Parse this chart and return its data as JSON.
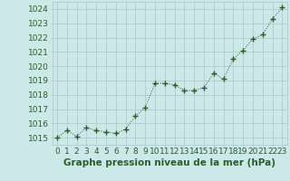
{
  "x": [
    0,
    1,
    2,
    3,
    4,
    5,
    6,
    7,
    8,
    9,
    10,
    11,
    12,
    13,
    14,
    15,
    16,
    17,
    18,
    19,
    20,
    21,
    22,
    23
  ],
  "y": [
    1015.0,
    1015.5,
    1015.1,
    1015.7,
    1015.5,
    1015.4,
    1015.3,
    1015.6,
    1016.5,
    1017.1,
    1018.8,
    1018.8,
    1018.7,
    1018.3,
    1018.3,
    1018.5,
    1019.5,
    1019.1,
    1020.5,
    1021.1,
    1021.9,
    1022.2,
    1023.3,
    1024.1
  ],
  "line_color": "#2a5f2a",
  "marker_color": "#2a5f2a",
  "bg_color": "#cce8e8",
  "grid_color": "#aac8c8",
  "title": "Graphe pression niveau de la mer (hPa)",
  "ylim_min": 1014.5,
  "ylim_max": 1024.5,
  "xlim_min": -0.5,
  "xlim_max": 23.5,
  "yticks": [
    1015,
    1016,
    1017,
    1018,
    1019,
    1020,
    1021,
    1022,
    1023,
    1024
  ],
  "xticks": [
    0,
    1,
    2,
    3,
    4,
    5,
    6,
    7,
    8,
    9,
    10,
    11,
    12,
    13,
    14,
    15,
    16,
    17,
    18,
    19,
    20,
    21,
    22,
    23
  ],
  "tick_fontsize": 6.5,
  "title_fontsize": 7.5,
  "title_fontweight": "bold",
  "label_color": "#2a5f2a"
}
